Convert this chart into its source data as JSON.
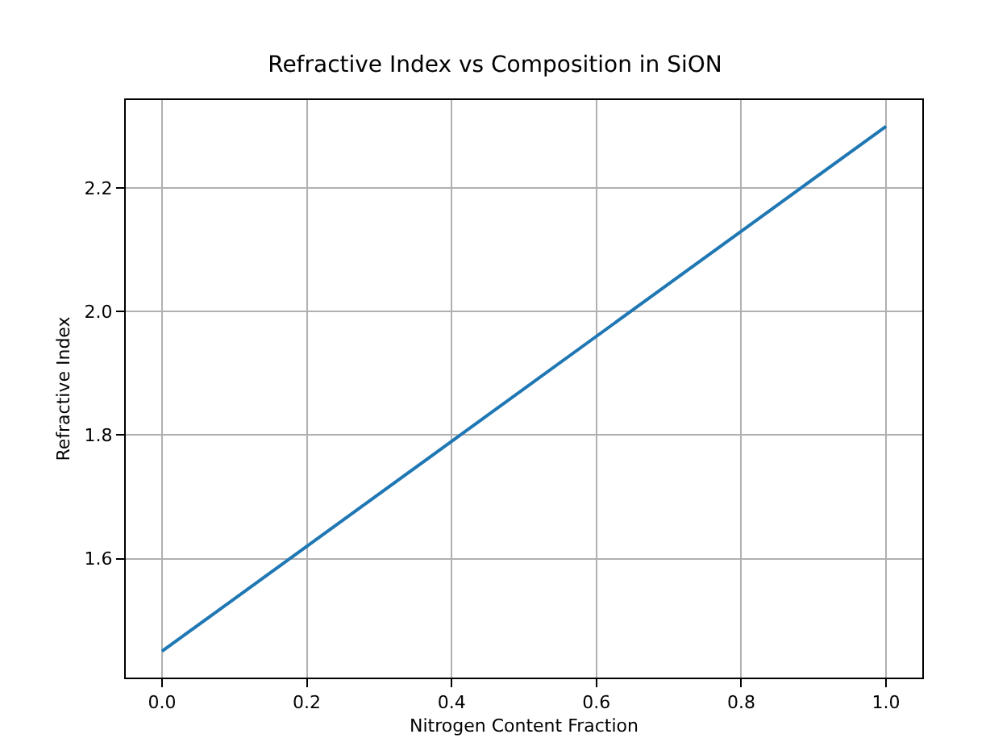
{
  "chart_data": {
    "type": "line",
    "title": "Refractive Index vs Composition in SiON",
    "xlabel": "Nitrogen Content Fraction",
    "ylabel": "Refractive Index",
    "x": [
      0.0,
      1.0
    ],
    "series": [
      {
        "color": "#1f77b4",
        "values": [
          1.45,
          2.3
        ]
      }
    ],
    "xlim": [
      -0.05,
      1.05
    ],
    "ylim": [
      1.4075,
      2.3425
    ],
    "xticks": [
      {
        "value": 0.0,
        "label": "0.0"
      },
      {
        "value": 0.2,
        "label": "0.2"
      },
      {
        "value": 0.4,
        "label": "0.4"
      },
      {
        "value": 0.6,
        "label": "0.6"
      },
      {
        "value": 0.8,
        "label": "0.8"
      },
      {
        "value": 1.0,
        "label": "1.0"
      }
    ],
    "yticks": [
      {
        "value": 1.6,
        "label": "1.6"
      },
      {
        "value": 1.8,
        "label": "1.8"
      },
      {
        "value": 2.0,
        "label": "2.0"
      },
      {
        "value": 2.2,
        "label": "2.2"
      }
    ],
    "grid": true,
    "line_style": "solid",
    "marker": "none"
  }
}
